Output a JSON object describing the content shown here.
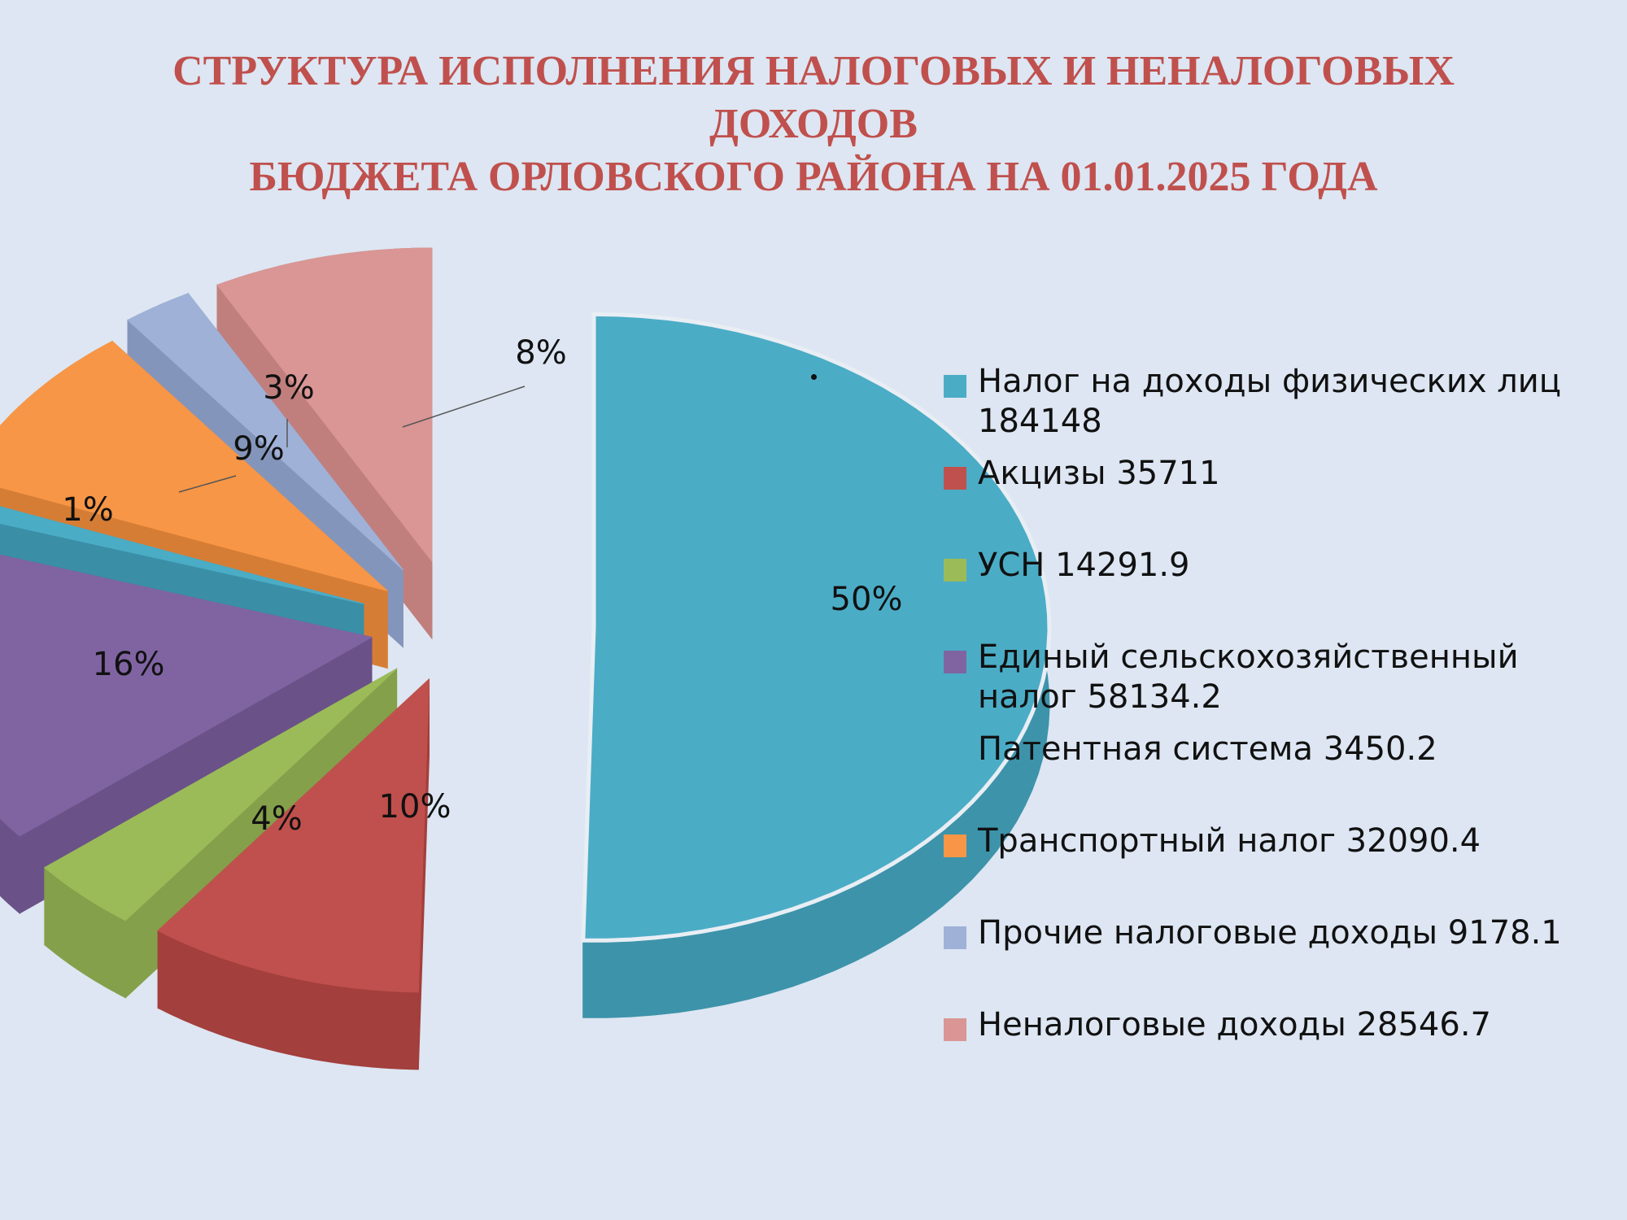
{
  "title": {
    "line1": "СТРУКТУРА ИСПОЛНЕНИЯ НАЛОГОВЫХ И НЕНАЛОГОВЫХ",
    "line2": "ДОХОДОВ",
    "line3": "БЮДЖЕТА ОРЛОВСКОГО РАЙОНА НА 01.01.2025 ГОДА"
  },
  "chart_data": {
    "type": "pie",
    "title": "СТРУКТУРА ИСПОЛНЕНИЯ НАЛОГОВЫХ И НЕНАЛОГОВЫХ ДОХОДОВ БЮДЖЕТА ОРЛОВСКОГО РАЙОНА НА 01.01.2025 ГОДА",
    "exploded": true,
    "three_d": true,
    "legend_position": "right",
    "categories": [
      "Налог на доходы физических лиц",
      "Акцизы",
      "УСН",
      "Единый сельскохозяйственный налог",
      "Патентная система",
      "Транспортный налог",
      "Прочие налоговые доходы",
      "Неналоговые доходы"
    ],
    "values": [
      184148,
      35711,
      14291.9,
      58134.2,
      3450.2,
      32090.4,
      9178.1,
      28546.7
    ],
    "percent_labels": [
      "50%",
      "10%",
      "4%",
      "16%",
      "1%",
      "9%",
      "3%",
      "8%"
    ],
    "legend_labels": [
      "Налог на доходы физических лиц 184148",
      "Акцизы 35711",
      "УСН 14291.9",
      "Единый сельскохозяйственный налог 58134.2",
      "Патентная система 3450.2",
      "Транспортный налог 32090.4",
      "Прочие налоговые доходы 9178.1",
      "Неналоговые доходы 28546.7"
    ],
    "colors": [
      "#4bacc6",
      "#c0504d",
      "#9bbb59",
      "#8064a2",
      "#4bacc6",
      "#f79646",
      "#9fb1d7",
      "#d99694"
    ],
    "side_colors": [
      "#3d93aa",
      "#a33f3c",
      "#84a04a",
      "#6a5288",
      "#3a8fa6",
      "#d67d35",
      "#8495bb",
      "#c07f7d"
    ]
  }
}
